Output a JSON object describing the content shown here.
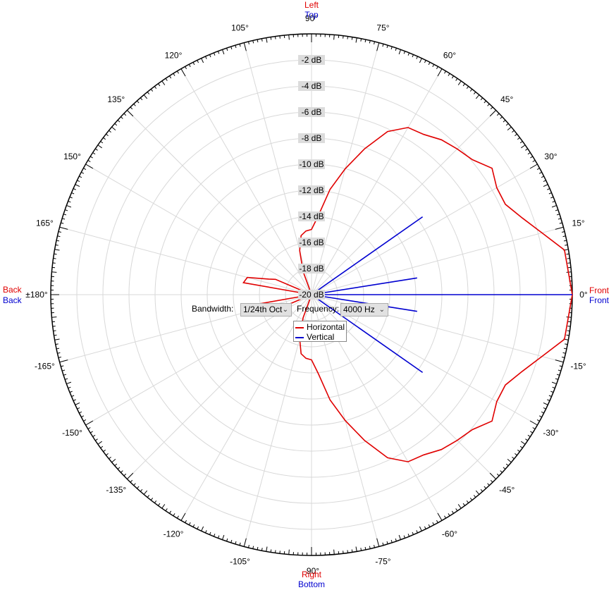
{
  "direction_labels": {
    "top_horizontal": "Left",
    "top_vertical": "Top",
    "bottom_horizontal": "Right",
    "bottom_vertical": "Bottom",
    "left_horizontal": "Back",
    "left_vertical": "Back",
    "right_horizontal": "Front",
    "right_vertical": "Front"
  },
  "controls": {
    "bandwidth_label": "Bandwidth:",
    "bandwidth_value": "1/24th Oct",
    "frequency_label": "Frequency:",
    "frequency_value": "4000 Hz"
  },
  "colors": {
    "horizontal": "#e00000",
    "vertical": "#0000d0",
    "top_label": "#e00000",
    "grid": "#d8d8d8",
    "db_label_bg": "#dcdcdc"
  },
  "chart_data": {
    "type": "polar-line",
    "angle_ticks": [
      "0°",
      "15°",
      "30°",
      "45°",
      "60°",
      "75°",
      "90°",
      "105°",
      "120°",
      "135°",
      "150°",
      "165°",
      "±180°",
      "-165°",
      "-150°",
      "-135°",
      "-120°",
      "-105°",
      "-90°",
      "-75°",
      "-60°",
      "-45°",
      "-30°",
      "-15°"
    ],
    "angle_values": [
      0,
      15,
      30,
      45,
      60,
      75,
      90,
      105,
      120,
      135,
      150,
      165,
      180,
      -165,
      -150,
      -135,
      -120,
      -105,
      -90,
      -75,
      -60,
      -45,
      -30,
      -15
    ],
    "radial_labels": [
      "-2 dB",
      "-4 dB",
      "-6 dB",
      "-8 dB",
      "-10 dB",
      "-12 dB",
      "-14 dB",
      "-16 dB",
      "-18 dB",
      "-20 dB"
    ],
    "radial_values": [
      -2,
      -4,
      -6,
      -8,
      -10,
      -12,
      -14,
      -16,
      -18,
      -20
    ],
    "rlim": [
      -20,
      0
    ],
    "grid": true,
    "legend_placement": "center-below",
    "series": [
      {
        "name": "Horizontal",
        "points": [
          [
            0,
            0
          ],
          [
            10,
            -0.3
          ],
          [
            15,
            -1.7
          ],
          [
            20,
            -2.8
          ],
          [
            25,
            -3.6
          ],
          [
            30,
            -3.6
          ],
          [
            35,
            -3.1
          ],
          [
            40,
            -3.9
          ],
          [
            45,
            -4.2
          ],
          [
            50,
            -4.5
          ],
          [
            55,
            -5.0
          ],
          [
            60,
            -5.2
          ],
          [
            65,
            -6.2
          ],
          [
            70,
            -8.1
          ],
          [
            75,
            -10.0
          ],
          [
            80,
            -11.8
          ],
          [
            85,
            -13.9
          ],
          [
            90,
            -15.0
          ],
          [
            95,
            -15.1
          ],
          [
            100,
            -15.4
          ],
          [
            105,
            -16.5
          ],
          [
            110,
            -18.1
          ],
          [
            120,
            -20
          ],
          [
            150,
            -20
          ],
          [
            157,
            -17.0
          ],
          [
            160,
            -16.5
          ],
          [
            165,
            -14.9
          ],
          [
            170,
            -14.7
          ],
          [
            180,
            -20
          ],
          [
            -170,
            -14.7
          ],
          [
            -165,
            -14.9
          ],
          [
            -160,
            -16.5
          ],
          [
            -157,
            -17.0
          ],
          [
            -150,
            -20
          ],
          [
            -120,
            -20
          ],
          [
            -110,
            -18.1
          ],
          [
            -105,
            -16.5
          ],
          [
            -100,
            -15.4
          ],
          [
            -95,
            -15.1
          ],
          [
            -90,
            -15.0
          ],
          [
            -85,
            -13.9
          ],
          [
            -80,
            -11.8
          ],
          [
            -75,
            -10.0
          ],
          [
            -70,
            -8.1
          ],
          [
            -65,
            -6.2
          ],
          [
            -60,
            -5.2
          ],
          [
            -55,
            -5.0
          ],
          [
            -50,
            -4.5
          ],
          [
            -45,
            -4.2
          ],
          [
            -40,
            -3.9
          ],
          [
            -35,
            -3.1
          ],
          [
            -30,
            -3.6
          ],
          [
            -25,
            -3.6
          ],
          [
            -20,
            -2.8
          ],
          [
            -15,
            -1.7
          ],
          [
            -10,
            -0.3
          ],
          [
            0,
            0
          ]
        ]
      },
      {
        "name": "Vertical",
        "points": [
          [
            0,
            0
          ],
          [
            3,
            -20
          ],
          [
            9,
            -11.8
          ],
          [
            12,
            -20
          ],
          [
            30,
            -20
          ],
          [
            35,
            -9.6
          ],
          [
            40,
            -20
          ],
          [
            180,
            -20
          ],
          [
            -40,
            -20
          ],
          [
            -35,
            -9.6
          ],
          [
            -30,
            -20
          ],
          [
            -12,
            -20
          ],
          [
            -9,
            -11.8
          ],
          [
            -3,
            -20
          ],
          [
            0,
            0
          ]
        ]
      }
    ]
  }
}
